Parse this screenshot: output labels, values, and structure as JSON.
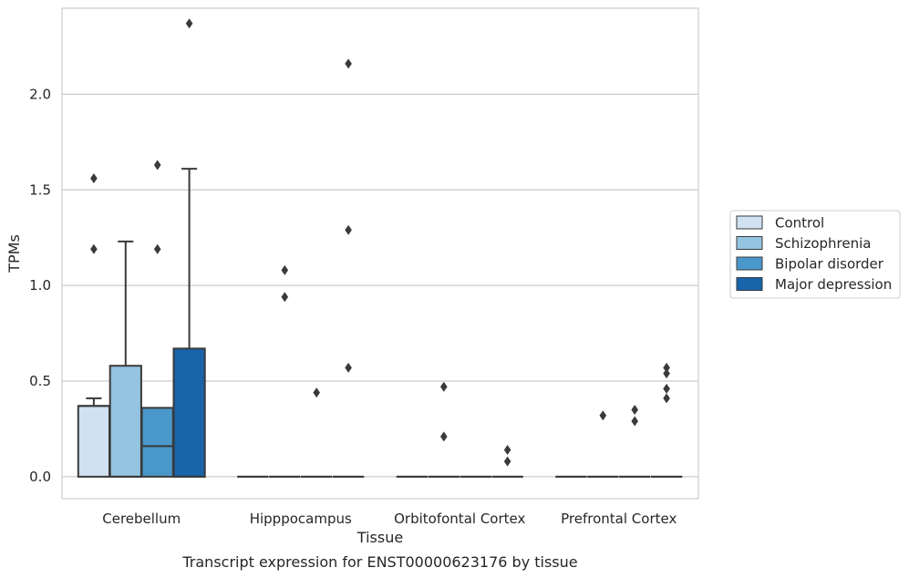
{
  "caption": "Transcript expression for ENST00000623176 by tissue",
  "chart_data": {
    "type": "box",
    "xlabel": "Tissue",
    "ylabel": "TPMs",
    "ylim": [
      -0.115,
      2.45
    ],
    "yticks": [
      0.0,
      0.5,
      1.0,
      1.5,
      2.0
    ],
    "ytick_labels": [
      "0.0",
      "0.5",
      "1.0",
      "1.5",
      "2.0"
    ],
    "grid": "horizontal",
    "legend_position": "right",
    "categories": [
      "Cerebellum",
      "Hipppocampus",
      "Orbitofontal Cortex",
      "Prefrontal Cortex"
    ],
    "series": [
      {
        "name": "Control",
        "color": "#d0e1f2",
        "boxes": [
          {
            "q1": 0.0,
            "median": 0.37,
            "q3": 0.37,
            "whisker_low": 0.0,
            "whisker_high": 0.41,
            "outliers": [
              1.19,
              1.56
            ]
          },
          {
            "q1": 0.0,
            "median": 0.0,
            "q3": 0.0,
            "whisker_low": 0.0,
            "whisker_high": 0.0,
            "outliers": []
          },
          {
            "q1": 0.0,
            "median": 0.0,
            "q3": 0.0,
            "whisker_low": 0.0,
            "whisker_high": 0.0,
            "outliers": []
          },
          {
            "q1": 0.0,
            "median": 0.0,
            "q3": 0.0,
            "whisker_low": 0.0,
            "whisker_high": 0.0,
            "outliers": []
          }
        ]
      },
      {
        "name": "Schizophrenia",
        "color": "#94c4df",
        "boxes": [
          {
            "q1": 0.0,
            "median": 0.0,
            "q3": 0.58,
            "whisker_low": 0.0,
            "whisker_high": 1.23,
            "outliers": []
          },
          {
            "q1": 0.0,
            "median": 0.0,
            "q3": 0.0,
            "whisker_low": 0.0,
            "whisker_high": 0.0,
            "outliers": [
              0.94,
              1.08
            ]
          },
          {
            "q1": 0.0,
            "median": 0.0,
            "q3": 0.0,
            "whisker_low": 0.0,
            "whisker_high": 0.0,
            "outliers": [
              0.21,
              0.47
            ]
          },
          {
            "q1": 0.0,
            "median": 0.0,
            "q3": 0.0,
            "whisker_low": 0.0,
            "whisker_high": 0.0,
            "outliers": [
              0.32
            ]
          }
        ]
      },
      {
        "name": "Bipolar disorder",
        "color": "#4a98c9",
        "boxes": [
          {
            "q1": 0.0,
            "median": 0.16,
            "q3": 0.36,
            "whisker_low": 0.0,
            "whisker_high": 0.36,
            "outliers": [
              1.19,
              1.63
            ]
          },
          {
            "q1": 0.0,
            "median": 0.0,
            "q3": 0.0,
            "whisker_low": 0.0,
            "whisker_high": 0.0,
            "outliers": [
              0.44
            ]
          },
          {
            "q1": 0.0,
            "median": 0.0,
            "q3": 0.0,
            "whisker_low": 0.0,
            "whisker_high": 0.0,
            "outliers": []
          },
          {
            "q1": 0.0,
            "median": 0.0,
            "q3": 0.0,
            "whisker_low": 0.0,
            "whisker_high": 0.0,
            "outliers": [
              0.29,
              0.35
            ]
          }
        ]
      },
      {
        "name": "Major depression",
        "color": "#1764ab",
        "boxes": [
          {
            "q1": 0.0,
            "median": 0.0,
            "q3": 0.67,
            "whisker_low": 0.0,
            "whisker_high": 1.61,
            "outliers": [
              2.37
            ]
          },
          {
            "q1": 0.0,
            "median": 0.0,
            "q3": 0.0,
            "whisker_low": 0.0,
            "whisker_high": 0.0,
            "outliers": [
              0.57,
              1.29,
              2.16
            ]
          },
          {
            "q1": 0.0,
            "median": 0.0,
            "q3": 0.0,
            "whisker_low": 0.0,
            "whisker_high": 0.0,
            "outliers": [
              0.08,
              0.14
            ]
          },
          {
            "q1": 0.0,
            "median": 0.0,
            "q3": 0.0,
            "whisker_low": 0.0,
            "whisker_high": 0.0,
            "outliers": [
              0.46,
              0.41,
              0.54,
              0.57
            ]
          }
        ]
      }
    ]
  }
}
